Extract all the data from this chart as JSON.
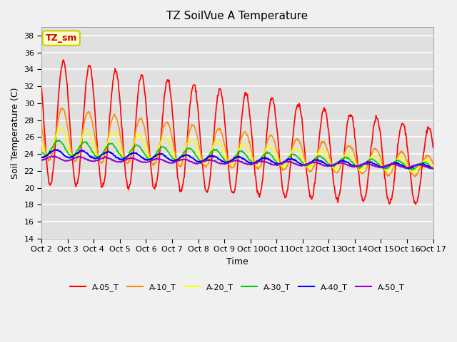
{
  "title": "TZ SoilVue A Temperature",
  "xlabel": "Time",
  "ylabel": "Soil Temperature (C)",
  "ylim": [
    14,
    39
  ],
  "yticks": [
    14,
    16,
    18,
    20,
    22,
    24,
    26,
    28,
    30,
    32,
    34,
    36,
    38
  ],
  "x_labels": [
    "Oct 2",
    "Oct 3",
    "Oct 4",
    "Oct 5",
    "Oct 6",
    "Oct 7",
    "Oct 8",
    "Oct 9",
    "Oct 10",
    "Oct 11",
    "Oct 12",
    "Oct 13",
    "Oct 14",
    "Oct 15",
    "Oct 16",
    "Oct 17"
  ],
  "x_tick_positions": [
    0,
    1,
    2,
    3,
    4,
    5,
    6,
    7,
    8,
    9,
    10,
    11,
    12,
    13,
    14,
    15
  ],
  "series_names": [
    "A-05_T",
    "A-10_T",
    "A-20_T",
    "A-30_T",
    "A-40_T",
    "A-50_T"
  ],
  "series_colors": {
    "A-05_T": "#ff0000",
    "A-10_T": "#ff8c00",
    "A-20_T": "#ffff00",
    "A-30_T": "#00cc00",
    "A-40_T": "#0000ff",
    "A-50_T": "#9900cc"
  },
  "annotation_text": "TZ_sm",
  "annotation_color": "#cc0000",
  "annotation_bg": "#ffffcc",
  "annotation_border": "#cccc00",
  "fig_facecolor": "#f0f0f0",
  "ax_facecolor": "#e0e0e0",
  "grid_color": "#ffffff",
  "n_days": 15,
  "samples_per_day": 48,
  "xlim": [
    0,
    15
  ]
}
